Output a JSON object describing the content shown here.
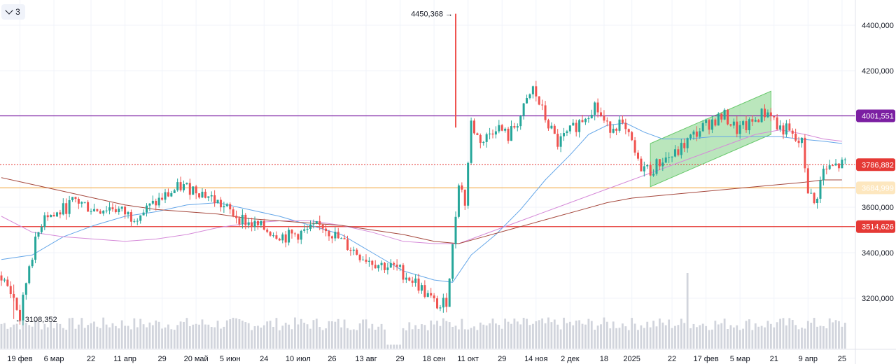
{
  "toolbar": {
    "collapse_count": "3"
  },
  "colors": {
    "up": "#26a69a",
    "down": "#ef5350",
    "volume": "#d1d4dc",
    "purple_line": "#7b1fa2",
    "orange_line": "#f5c27a",
    "red_line": "#e53935",
    "current_line": "#e53935",
    "channel_fill": "#66c86a",
    "ma_blue": "#64a6e8",
    "ma_pink": "#d58ad8",
    "ma_brown": "#a5473c"
  },
  "chart_data": {
    "type": "candlestick",
    "price_axis": {
      "ylim": [
        3080000,
        4480000
      ],
      "ticks": [
        {
          "value": 4400000,
          "label": "4400,000"
        },
        {
          "value": 4200000,
          "label": "4200,000"
        },
        {
          "value": 3600000,
          "label": "3600,000"
        },
        {
          "value": 3400000,
          "label": "3400,000"
        },
        {
          "value": 3200000,
          "label": "3200,000"
        }
      ]
    },
    "time_axis": {
      "ticks": [
        {
          "label": "19 фев",
          "bar": 6
        },
        {
          "label": "6 мар",
          "bar": 17
        },
        {
          "label": "22",
          "bar": 29
        },
        {
          "label": "11 апр",
          "bar": 40
        },
        {
          "label": "29",
          "bar": 52
        },
        {
          "label": "20 май",
          "bar": 63
        },
        {
          "label": "5 июн",
          "bar": 74
        },
        {
          "label": "24",
          "bar": 85
        },
        {
          "label": "10 июл",
          "bar": 96
        },
        {
          "label": "26",
          "bar": 107
        },
        {
          "label": "13 авг",
          "bar": 118
        },
        {
          "label": "29",
          "bar": 129
        },
        {
          "label": "18 сен",
          "bar": 140
        },
        {
          "label": "11 окт",
          "bar": 151
        },
        {
          "label": "29",
          "bar": 162
        },
        {
          "label": "14 ноя",
          "bar": 173
        },
        {
          "label": "2 дек",
          "bar": 184
        },
        {
          "label": "18",
          "bar": 195
        },
        {
          "label": "2025",
          "bar": 204
        },
        {
          "label": "22",
          "bar": 217
        },
        {
          "label": "17 фев",
          "bar": 228
        },
        {
          "label": "5 мар",
          "bar": 239
        },
        {
          "label": "21",
          "bar": 250
        },
        {
          "label": "9 апр",
          "bar": 261
        },
        {
          "label": "25",
          "bar": 272
        }
      ]
    },
    "horizontal_levels": [
      {
        "name": "purple",
        "value": 4001551,
        "label": "4001,551",
        "color": "#7b1fa2",
        "style": "solid"
      },
      {
        "name": "current",
        "value": 3786882,
        "label": "3786,882",
        "color": "#e53935",
        "style": "dotted"
      },
      {
        "name": "orange",
        "value": 3684999,
        "label": "3684,999",
        "color": "#f5b35a",
        "style": "solid"
      },
      {
        "name": "red",
        "value": 3514626,
        "label": "3514,626",
        "color": "#e53935",
        "style": "solid"
      }
    ],
    "annotations": [
      {
        "text": "4450,368",
        "value": 4450368,
        "bar": 147,
        "arrow": "→",
        "side": "left"
      },
      {
        "text": "3108,352",
        "value": 3108352,
        "bar": 4,
        "arrow": "←",
        "side": "right"
      }
    ],
    "channel": {
      "start_bar": 210,
      "end_bar": 249,
      "lower_start": 3690000,
      "upper_start": 3880000,
      "lower_end": 3920000,
      "upper_end": 4110000
    },
    "price_path": [
      [
        0,
        3300000
      ],
      [
        4,
        3200000
      ],
      [
        6,
        3110000
      ],
      [
        9,
        3350000
      ],
      [
        14,
        3580000
      ],
      [
        17,
        3560000
      ],
      [
        24,
        3630000
      ],
      [
        30,
        3590000
      ],
      [
        36,
        3600000
      ],
      [
        42,
        3560000
      ],
      [
        46,
        3580000
      ],
      [
        52,
        3640000
      ],
      [
        58,
        3690000
      ],
      [
        63,
        3680000
      ],
      [
        68,
        3640000
      ],
      [
        74,
        3580000
      ],
      [
        80,
        3530000
      ],
      [
        86,
        3500000
      ],
      [
        92,
        3470000
      ],
      [
        98,
        3490000
      ],
      [
        104,
        3520000
      ],
      [
        110,
        3450000
      ],
      [
        116,
        3390000
      ],
      [
        122,
        3350000
      ],
      [
        128,
        3330000
      ],
      [
        134,
        3270000
      ],
      [
        140,
        3180000
      ],
      [
        142,
        3160000
      ],
      [
        144,
        3190000
      ],
      [
        146,
        3420000
      ],
      [
        148,
        3720000
      ],
      [
        150,
        3620000
      ],
      [
        152,
        3970000
      ],
      [
        154,
        3910000
      ],
      [
        156,
        3890000
      ],
      [
        160,
        3960000
      ],
      [
        164,
        3910000
      ],
      [
        168,
        4000000
      ],
      [
        172,
        4120000
      ],
      [
        176,
        3990000
      ],
      [
        180,
        3880000
      ],
      [
        184,
        3930000
      ],
      [
        188,
        3990000
      ],
      [
        192,
        4050000
      ],
      [
        196,
        3950000
      ],
      [
        200,
        3970000
      ],
      [
        204,
        3880000
      ],
      [
        206,
        3790000
      ],
      [
        210,
        3760000
      ],
      [
        214,
        3810000
      ],
      [
        218,
        3830000
      ],
      [
        222,
        3890000
      ],
      [
        226,
        3940000
      ],
      [
        230,
        3980000
      ],
      [
        234,
        4000000
      ],
      [
        238,
        3940000
      ],
      [
        242,
        3960000
      ],
      [
        246,
        4010000
      ],
      [
        249,
        4020000
      ],
      [
        251,
        3950000
      ],
      [
        254,
        3940000
      ],
      [
        257,
        3890000
      ],
      [
        259,
        3880000
      ],
      [
        261,
        3680000
      ],
      [
        263,
        3610000
      ],
      [
        266,
        3760000
      ],
      [
        270,
        3780000
      ],
      [
        273,
        3790000
      ]
    ],
    "moving_averages": [
      {
        "name": "ma-blue",
        "color": "#64a6e8",
        "points": [
          [
            0,
            3370000
          ],
          [
            10,
            3390000
          ],
          [
            20,
            3470000
          ],
          [
            30,
            3520000
          ],
          [
            40,
            3560000
          ],
          [
            50,
            3580000
          ],
          [
            60,
            3610000
          ],
          [
            70,
            3620000
          ],
          [
            80,
            3590000
          ],
          [
            90,
            3560000
          ],
          [
            100,
            3520000
          ],
          [
            110,
            3480000
          ],
          [
            120,
            3400000
          ],
          [
            130,
            3320000
          ],
          [
            140,
            3280000
          ],
          [
            146,
            3270000
          ],
          [
            152,
            3390000
          ],
          [
            160,
            3480000
          ],
          [
            168,
            3590000
          ],
          [
            176,
            3720000
          ],
          [
            184,
            3830000
          ],
          [
            190,
            3920000
          ],
          [
            196,
            3960000
          ],
          [
            202,
            3970000
          ],
          [
            208,
            3930000
          ],
          [
            214,
            3900000
          ],
          [
            222,
            3900000
          ],
          [
            230,
            3910000
          ],
          [
            238,
            3910000
          ],
          [
            246,
            3910000
          ],
          [
            252,
            3910000
          ],
          [
            258,
            3900000
          ],
          [
            266,
            3890000
          ],
          [
            272,
            3880000
          ]
        ]
      },
      {
        "name": "ma-pink",
        "color": "#d58ad8",
        "points": [
          [
            0,
            3560000
          ],
          [
            10,
            3490000
          ],
          [
            20,
            3470000
          ],
          [
            30,
            3460000
          ],
          [
            40,
            3450000
          ],
          [
            50,
            3460000
          ],
          [
            60,
            3480000
          ],
          [
            70,
            3510000
          ],
          [
            80,
            3530000
          ],
          [
            90,
            3540000
          ],
          [
            100,
            3540000
          ],
          [
            110,
            3520000
          ],
          [
            120,
            3490000
          ],
          [
            130,
            3450000
          ],
          [
            140,
            3440000
          ],
          [
            148,
            3440000
          ],
          [
            156,
            3480000
          ],
          [
            164,
            3520000
          ],
          [
            172,
            3560000
          ],
          [
            180,
            3600000
          ],
          [
            188,
            3640000
          ],
          [
            196,
            3680000
          ],
          [
            204,
            3720000
          ],
          [
            212,
            3760000
          ],
          [
            220,
            3800000
          ],
          [
            228,
            3840000
          ],
          [
            236,
            3880000
          ],
          [
            244,
            3920000
          ],
          [
            252,
            3940000
          ],
          [
            260,
            3920000
          ],
          [
            266,
            3900000
          ],
          [
            272,
            3890000
          ]
        ]
      },
      {
        "name": "ma-brown",
        "color": "#a5473c",
        "points": [
          [
            0,
            3730000
          ],
          [
            10,
            3700000
          ],
          [
            20,
            3670000
          ],
          [
            30,
            3640000
          ],
          [
            40,
            3610000
          ],
          [
            50,
            3590000
          ],
          [
            60,
            3580000
          ],
          [
            70,
            3570000
          ],
          [
            80,
            3550000
          ],
          [
            90,
            3540000
          ],
          [
            100,
            3530000
          ],
          [
            110,
            3520000
          ],
          [
            120,
            3500000
          ],
          [
            130,
            3480000
          ],
          [
            140,
            3450000
          ],
          [
            148,
            3440000
          ],
          [
            156,
            3470000
          ],
          [
            164,
            3500000
          ],
          [
            172,
            3530000
          ],
          [
            180,
            3560000
          ],
          [
            188,
            3590000
          ],
          [
            196,
            3620000
          ],
          [
            204,
            3640000
          ],
          [
            212,
            3650000
          ],
          [
            220,
            3660000
          ],
          [
            228,
            3670000
          ],
          [
            236,
            3680000
          ],
          [
            244,
            3690000
          ],
          [
            252,
            3700000
          ],
          [
            260,
            3710000
          ],
          [
            266,
            3720000
          ],
          [
            272,
            3720000
          ]
        ]
      }
    ],
    "volume": {
      "typical": 0.62,
      "spike_bar": 222,
      "spike_value": 1.8,
      "gap_bars": [
        125,
        126,
        127,
        128,
        129
      ]
    }
  }
}
